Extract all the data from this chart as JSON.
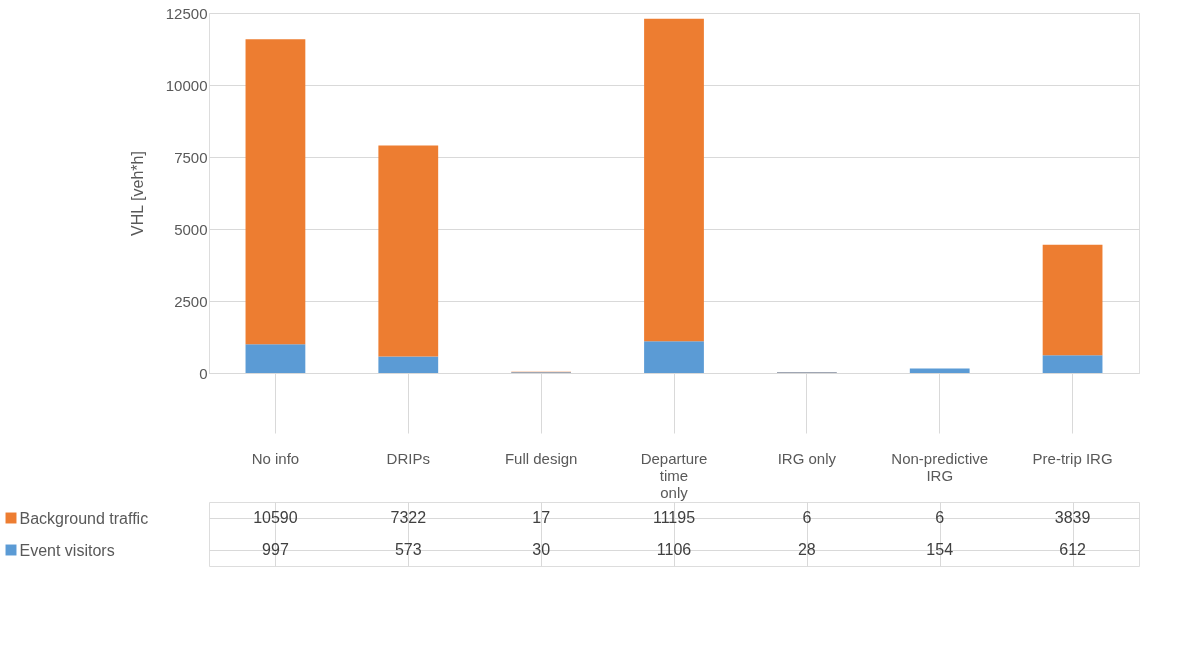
{
  "chart_data": {
    "type": "bar",
    "stacked": true,
    "ylabel": "VHL [veh*h]",
    "categories": [
      "No info",
      "DRIPs",
      "Full design",
      "Departure time only",
      "IRG only",
      "Non-predictive IRG",
      "Pre-trip IRG"
    ],
    "series": [
      {
        "name": "Event visitors",
        "color": "#5b9bd5",
        "values": [
          997,
          573,
          30,
          1106,
          28,
          154,
          612
        ]
      },
      {
        "name": "Background traffic",
        "color": "#ed7d31",
        "values": [
          10590,
          7322,
          17,
          11195,
          6,
          6,
          3839
        ]
      }
    ],
    "ylim": [
      0,
      12500
    ],
    "yticks": [
      0,
      2500,
      5000,
      7500,
      10000,
      12500
    ],
    "grid": "y",
    "legend": "bottom",
    "data_labels": true
  }
}
